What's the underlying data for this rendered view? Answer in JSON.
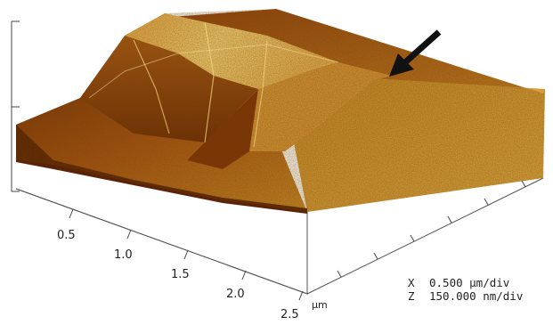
{
  "x_axis": {
    "ticks": [
      "0.5",
      "1.0",
      "1.5",
      "2.0",
      "2.5"
    ],
    "unit": "µm"
  },
  "scale_info": {
    "x_symbol": "X",
    "x_value": "0.500 µm/div",
    "z_symbol": "Z",
    "z_value": "150.000 nm/div"
  },
  "colors": {
    "surface_dark": "#5a2206",
    "surface_mid": "#b45f19",
    "surface_light": "#f2c15c",
    "arrow": "#111111",
    "axis": "#444444"
  }
}
